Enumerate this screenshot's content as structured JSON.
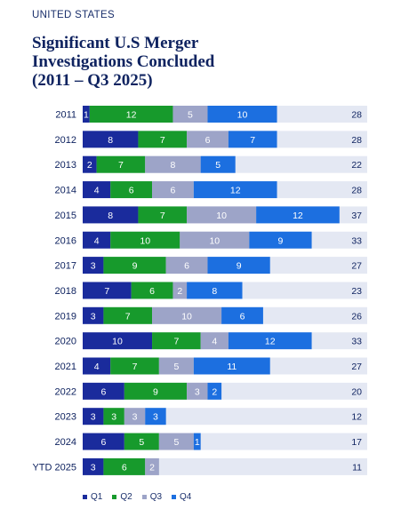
{
  "header": {
    "kicker": "UNITED STATES",
    "title_line1": "Significant U.S Merger",
    "title_line2": "Investigations Concluded",
    "title_line3": "(2011 – Q3 2025)"
  },
  "colors": {
    "Q1": "#1a2b9c",
    "Q2": "#179a2c",
    "Q3": "#9da4c8",
    "Q4": "#1c6fe0",
    "track": "#e4e8f3",
    "label": "#0f2360"
  },
  "chart_data": {
    "type": "bar",
    "orientation": "horizontal",
    "stacked": true,
    "categories": [
      "2011",
      "2012",
      "2013",
      "2014",
      "2015",
      "2016",
      "2017",
      "2018",
      "2019",
      "2020",
      "2021",
      "2022",
      "2023",
      "2024",
      "YTD 2025"
    ],
    "series": [
      {
        "name": "Q1",
        "values": [
          1,
          8,
          2,
          4,
          8,
          4,
          3,
          7,
          3,
          10,
          4,
          6,
          3,
          6,
          3
        ]
      },
      {
        "name": "Q2",
        "values": [
          12,
          7,
          7,
          6,
          7,
          10,
          9,
          6,
          7,
          7,
          7,
          9,
          3,
          5,
          6
        ]
      },
      {
        "name": "Q3",
        "values": [
          5,
          6,
          8,
          6,
          10,
          10,
          6,
          2,
          10,
          4,
          5,
          3,
          3,
          5,
          2
        ]
      },
      {
        "name": "Q4",
        "values": [
          10,
          7,
          5,
          12,
          12,
          9,
          9,
          8,
          6,
          12,
          11,
          2,
          3,
          1,
          null
        ]
      }
    ],
    "totals": [
      28,
      28,
      22,
      28,
      37,
      33,
      27,
      23,
      26,
      33,
      27,
      20,
      12,
      17,
      11
    ],
    "xlim": [
      0,
      41
    ],
    "legend_position": "bottom-left",
    "legend": [
      "Q1",
      "Q2",
      "Q3",
      "Q4"
    ]
  }
}
